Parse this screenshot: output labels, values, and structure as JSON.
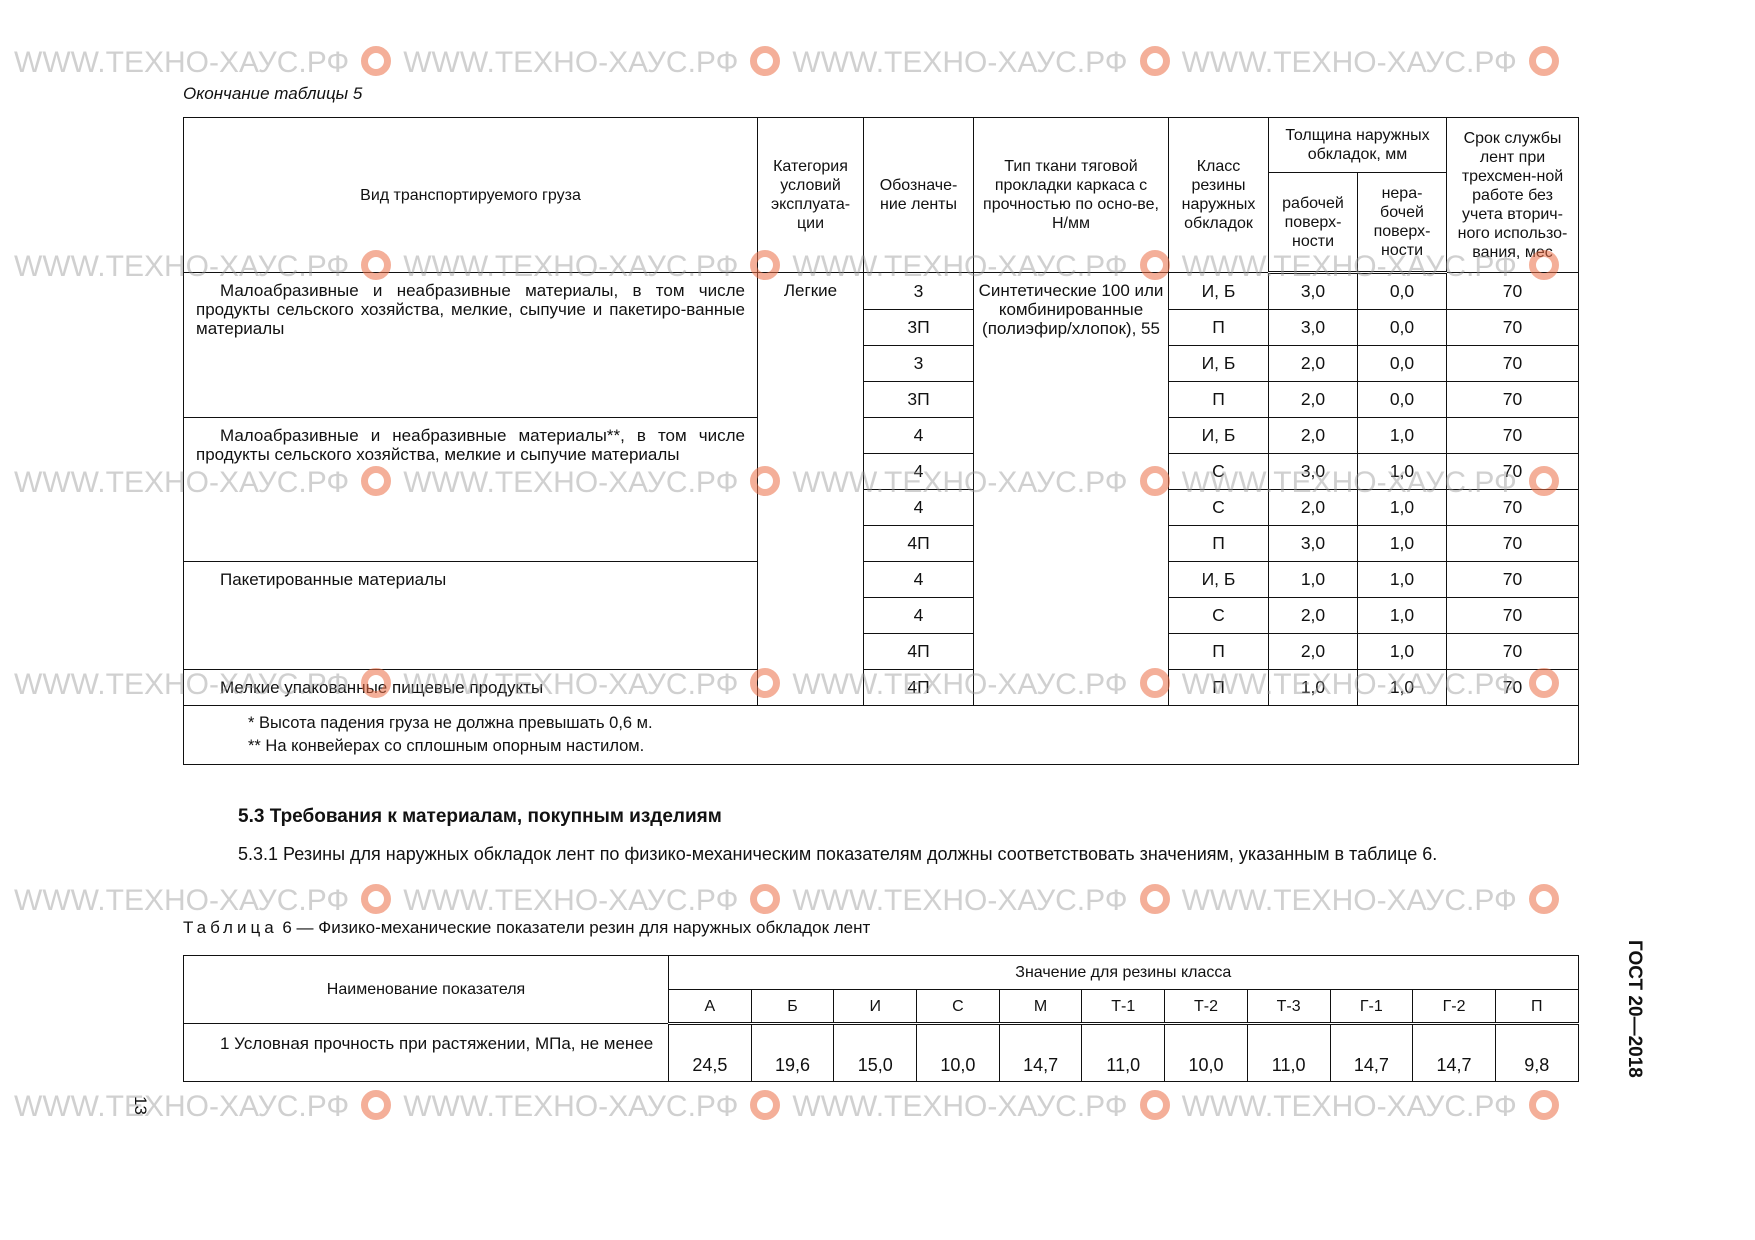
{
  "watermark": "WWW.ТЕХНО-ХАУС.РФ",
  "watermark_icon": "gear-logo-icon",
  "accent_color": "#eb6e46",
  "table5": {
    "continuation_caption": "Окончание таблицы 5",
    "headers": {
      "cargo": "Вид транспортируемого груза",
      "category": "Категория условий эксплуата-ции",
      "designation": "Обозначе-ние ленты",
      "fabric": "Тип ткани тяговой прокладки каркаса с прочностью по осно-ве, Н/мм",
      "rubber_class": "Класс резины наружных обкладок",
      "thickness": "Толщина наружных обкладок, мм",
      "working": "рабочей поверх-ности",
      "nonworking": "нера-бочей поверх-ности",
      "life": "Срок службы лент при трехсмен-ной работе без учета вторич-ного использо-вания, мес"
    },
    "category_value": "Легкие",
    "fabric_value": "Синтетические 100 или комбинированные (полиэфир/хлопок), 55",
    "groups": [
      {
        "cargo": "Малоабразивные и неабразивные материалы, в том числе продукты сельского хозяйства, мелкие, сыпучие и пакетиро-ванные материалы",
        "rows": [
          [
            "3",
            "И, Б",
            "3,0",
            "0,0",
            "70"
          ],
          [
            "3П",
            "П",
            "3,0",
            "0,0",
            "70"
          ],
          [
            "3",
            "И, Б",
            "2,0",
            "0,0",
            "70"
          ],
          [
            "3П",
            "П",
            "2,0",
            "0,0",
            "70"
          ]
        ]
      },
      {
        "cargo": "Малоабразивные и неабразивные материалы**, в том числе продукты сельского хозяйства, мелкие и сыпучие материалы",
        "rows": [
          [
            "4",
            "И, Б",
            "2,0",
            "1,0",
            "70"
          ],
          [
            "4",
            "С",
            "3,0",
            "1,0",
            "70"
          ],
          [
            "4",
            "С",
            "2,0",
            "1,0",
            "70"
          ],
          [
            "4П",
            "П",
            "3,0",
            "1,0",
            "70"
          ]
        ]
      },
      {
        "cargo": "Пакетированные материалы",
        "rows": [
          [
            "4",
            "И, Б",
            "1,0",
            "1,0",
            "70"
          ],
          [
            "4",
            "С",
            "2,0",
            "1,0",
            "70"
          ],
          [
            "4П",
            "П",
            "2,0",
            "1,0",
            "70"
          ]
        ]
      },
      {
        "cargo": "Мелкие упакованные пищевые продукты",
        "rows": [
          [
            "4П",
            "П",
            "1,0",
            "1,0",
            "70"
          ]
        ]
      }
    ],
    "footnotes": [
      "* Высота падения груза не должна превышать 0,6 м.",
      "** На конвейерах со сплошным опорным настилом."
    ]
  },
  "section": {
    "heading": "5.3  Требования к материалам, покупным изделиям",
    "paragraph": "5.3.1 Резины для наружных обкладок лент по физико-механическим показателям должны соответствовать значениям, указанным в таблице 6."
  },
  "table6": {
    "caption_label": "Таблица",
    "caption_text": " 6 — Физико-механические показатели резин для наружных обкладок лент",
    "header_name": "Наименование показателя",
    "header_values": "Значение для резины класса",
    "classes": [
      "А",
      "Б",
      "И",
      "С",
      "М",
      "Т-1",
      "Т-2",
      "Т-3",
      "Г-1",
      "Г-2",
      "П"
    ],
    "rows": [
      {
        "name": "1 Условная прочность при растяжении, МПа, не менее",
        "values": [
          "24,5",
          "19,6",
          "15,0",
          "10,0",
          "14,7",
          "11,0",
          "10,0",
          "11,0",
          "14,7",
          "14,7",
          "9,8"
        ]
      }
    ]
  },
  "page_number": "13",
  "standard_code": "ГОСТ 20—2018"
}
